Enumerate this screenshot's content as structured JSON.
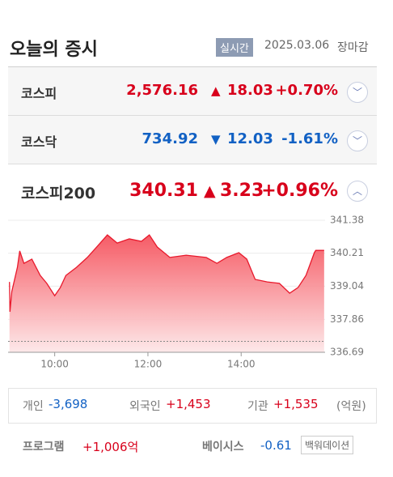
{
  "header": {
    "title": "오늘의 증시",
    "badge": "실시간",
    "date": "2025.03.06",
    "status": "장마감"
  },
  "indices": [
    {
      "name": "코스피",
      "value": "2,576.16",
      "change": "18.03",
      "percent": "+0.70%",
      "direction": "up"
    },
    {
      "name": "코스닥",
      "value": "734.92",
      "change": "12.03",
      "percent": "-1.61%",
      "direction": "down"
    },
    {
      "name": "코스피200",
      "value": "340.31",
      "change": "3.23",
      "percent": "+0.96%",
      "direction": "up"
    }
  ],
  "chart_data": {
    "type": "line",
    "color": "#e8192c",
    "x": [
      9.03,
      9.04,
      9.08,
      9.2,
      9.25,
      9.34,
      9.51,
      9.69,
      9.83,
      10.0,
      10.12,
      10.24,
      10.47,
      10.7,
      10.9,
      11.13,
      11.34,
      11.6,
      11.86,
      12.03,
      12.2,
      12.47,
      12.82,
      13.25,
      13.48,
      13.69,
      13.95,
      14.12,
      14.3,
      14.56,
      14.82,
      15.04,
      15.22,
      15.39,
      15.57,
      15.6,
      15.78
    ],
    "values": [
      339.19,
      338.13,
      338.85,
      339.71,
      340.29,
      339.85,
      340.0,
      339.42,
      339.14,
      338.7,
      338.99,
      339.42,
      339.71,
      340.06,
      340.43,
      340.86,
      340.57,
      340.72,
      340.63,
      340.86,
      340.43,
      340.06,
      340.14,
      340.06,
      339.85,
      340.06,
      340.23,
      340.0,
      339.28,
      339.19,
      339.14,
      338.79,
      338.99,
      339.42,
      340.23,
      340.31,
      340.31
    ],
    "baseline": 337.08,
    "xlim": [
      9,
      15.8
    ],
    "ylim": [
      336.69,
      341.38
    ],
    "xticks": [
      {
        "value": 10,
        "label": "10:00"
      },
      {
        "value": 12,
        "label": "12:00"
      },
      {
        "value": 14,
        "label": "14:00"
      }
    ],
    "yticks": [
      336.69,
      337.86,
      339.04,
      340.21,
      341.38
    ],
    "grid": true
  },
  "investors": {
    "items": [
      {
        "label": "개인",
        "value": "-3,698",
        "direction": "down"
      },
      {
        "label": "외국인",
        "value": "+1,453",
        "direction": "up"
      },
      {
        "label": "기관",
        "value": "+1,535",
        "direction": "up"
      }
    ],
    "unit": "(억원)"
  },
  "program": {
    "label": "프로그램",
    "value": "+1,006억"
  },
  "basis": {
    "label": "베이시스",
    "value": "-0.61",
    "badge": "백워데이션"
  }
}
